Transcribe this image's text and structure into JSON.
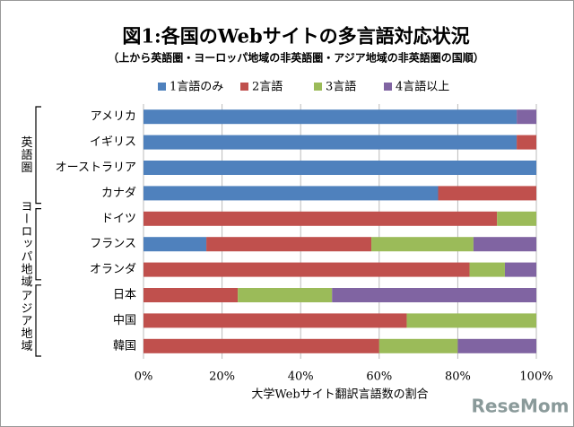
{
  "chart_data": {
    "type": "stacked-bar-horizontal",
    "title": "図1:各国のWebサイトの多言語対応状況",
    "subtitle": "（上から英語圏・ヨーロッパ地域の非英語圏・アジア地域の非英語圏の国順）",
    "x_label": "大学Webサイト翻訳言語数の割合",
    "groups": [
      "英語圏",
      "ヨーロッパ地域",
      "アジア地域"
    ],
    "categories": [
      "アメリカ",
      "イギリス",
      "オーストラリア",
      "カナダ",
      "ドイツ",
      "フランス",
      "オランダ",
      "日本",
      "中国",
      "韓国"
    ],
    "series": [
      {
        "name": "1言語のみ",
        "color": "#4f81bd",
        "values": [
          95,
          95,
          100,
          75,
          0,
          16,
          0,
          0,
          0,
          0
        ]
      },
      {
        "name": "2言語",
        "color": "#c0504d",
        "values": [
          0,
          5,
          0,
          25,
          90,
          42,
          83,
          24,
          67,
          60
        ]
      },
      {
        "name": "3言語",
        "color": "#9bbb59",
        "values": [
          0,
          0,
          0,
          0,
          10,
          26,
          9,
          24,
          33,
          20
        ]
      },
      {
        "name": "4言語以上",
        "color": "#8064a2",
        "values": [
          5,
          0,
          0,
          0,
          0,
          16,
          8,
          52,
          0,
          20
        ]
      }
    ],
    "xlim": [
      0,
      100
    ],
    "xticks": [
      {
        "value": 0,
        "label": "0%"
      },
      {
        "value": 20,
        "label": "20%"
      },
      {
        "value": 40,
        "label": "40%"
      },
      {
        "value": 60,
        "label": "60%"
      },
      {
        "value": 80,
        "label": "80%"
      },
      {
        "value": 100,
        "label": "100%"
      }
    ],
    "grid": true,
    "legend": "top",
    "watermark": "ReseMom"
  }
}
